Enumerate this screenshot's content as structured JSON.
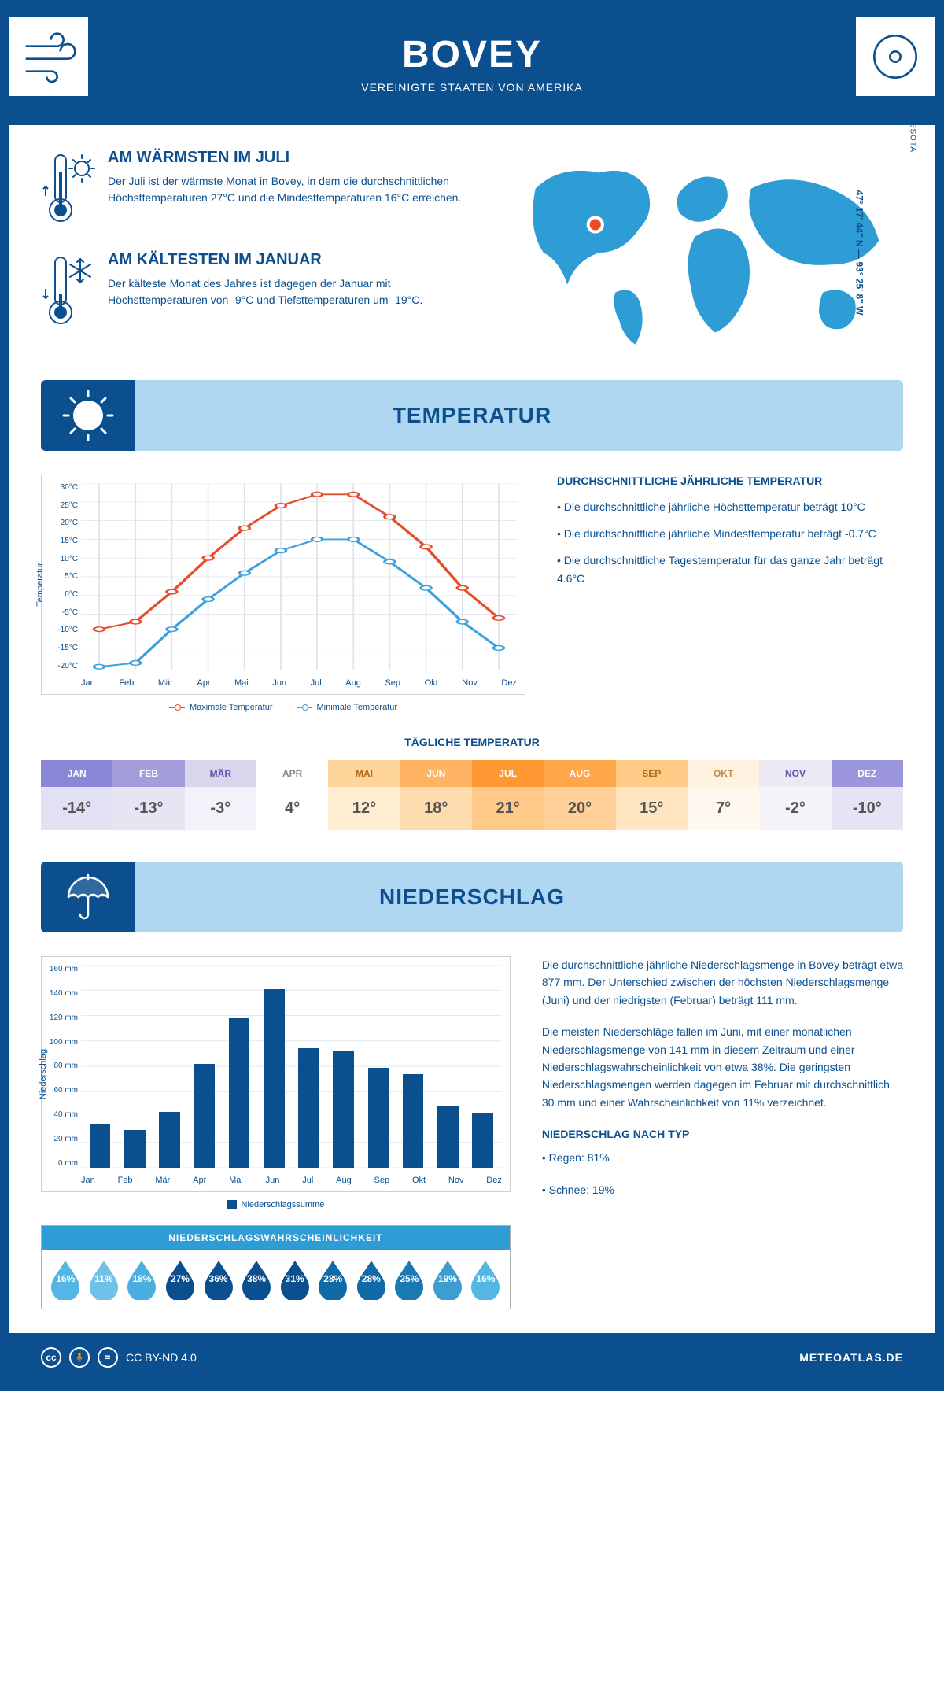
{
  "header": {
    "title": "BOVEY",
    "subtitle": "VEREINIGTE STAATEN VON AMERIKA"
  },
  "intro": {
    "warm": {
      "title": "AM WÄRMSTEN IM JULI",
      "text": "Der Juli ist der wärmste Monat in Bovey, in dem die durchschnittlichen Höchsttemperaturen 27°C und die Mindesttemperaturen 16°C erreichen."
    },
    "cold": {
      "title": "AM KÄLTESTEN IM JANUAR",
      "text": "Der kälteste Monat des Jahres ist dagegen der Januar mit Höchsttemperaturen von -9°C und Tiefsttemperaturen um -19°C."
    },
    "state": "MINNESOTA",
    "coords": "47° 17' 44'' N — 93° 25' 8'' W"
  },
  "months": [
    "Jan",
    "Feb",
    "Mär",
    "Apr",
    "Mai",
    "Jun",
    "Jul",
    "Aug",
    "Sep",
    "Okt",
    "Nov",
    "Dez"
  ],
  "months_upper": [
    "JAN",
    "FEB",
    "MÄR",
    "APR",
    "MAI",
    "JUN",
    "JUL",
    "AUG",
    "SEP",
    "OKT",
    "NOV",
    "DEZ"
  ],
  "temperature": {
    "banner": "TEMPERATUR",
    "chart": {
      "ylabel": "Temperatur",
      "ymin": -20,
      "ymax": 30,
      "ystep": 5,
      "max_series": {
        "label": "Maximale Temperatur",
        "color": "#e74c2b",
        "values": [
          -9,
          -7,
          1,
          10,
          18,
          24,
          27,
          27,
          21,
          13,
          2,
          -6
        ]
      },
      "min_series": {
        "label": "Minimale Temperatur",
        "color": "#3fa0de",
        "values": [
          -19,
          -18,
          -9,
          -1,
          6,
          12,
          15,
          15,
          9,
          2,
          -7,
          -14
        ]
      }
    },
    "info": {
      "title": "DURCHSCHNITTLICHE JÄHRLICHE TEMPERATUR",
      "l1": "• Die durchschnittliche jährliche Höchsttemperatur beträgt 10°C",
      "l2": "• Die durchschnittliche jährliche Mindesttemperatur beträgt -0.7°C",
      "l3": "• Die durchschnittliche Tagestemperatur für das ganze Jahr beträgt 4.6°C"
    },
    "daily": {
      "title": "TÄGLICHE TEMPERATUR",
      "values": [
        "-14°",
        "-13°",
        "-3°",
        "4°",
        "12°",
        "18°",
        "21°",
        "20°",
        "15°",
        "7°",
        "-2°",
        "-10°"
      ],
      "head_colors": [
        "#8b87d8",
        "#a39ddd",
        "#d9d5ed",
        "#ffffff",
        "#ffd59a",
        "#ffb463",
        "#ff9833",
        "#ffa748",
        "#ffcb87",
        "#fff2e0",
        "#ece9f5",
        "#9b96db"
      ],
      "val_colors": [
        "#e2e0f3",
        "#e7e5f4",
        "#f3f1f9",
        "#ffffff",
        "#ffedd2",
        "#ffdcb0",
        "#ffc988",
        "#ffd199",
        "#ffe5c0",
        "#fff8ee",
        "#f6f4fa",
        "#e6e3f4"
      ],
      "text_colors": [
        "#ffffff",
        "#ffffff",
        "#5b56b0",
        "#888888",
        "#b06a1a",
        "#ffffff",
        "#ffffff",
        "#ffffff",
        "#b06a1a",
        "#c08a4a",
        "#5b56b0",
        "#ffffff"
      ]
    }
  },
  "precip": {
    "banner": "NIEDERSCHLAG",
    "chart": {
      "ylabel": "Niederschlag",
      "ymax": 160,
      "ystep": 20,
      "values": [
        35,
        30,
        44,
        82,
        118,
        141,
        94,
        92,
        79,
        74,
        49,
        43
      ],
      "color": "#0b4f8f",
      "legend": "Niederschlagssumme"
    },
    "text1": "Die durchschnittliche jährliche Niederschlagsmenge in Bovey beträgt etwa 877 mm. Der Unterschied zwischen der höchsten Niederschlagsmenge (Juni) und der niedrigsten (Februar) beträgt 111 mm.",
    "text2": "Die meisten Niederschläge fallen im Juni, mit einer monatlichen Niederschlagsmenge von 141 mm in diesem Zeitraum und einer Niederschlagswahrscheinlichkeit von etwa 38%. Die geringsten Niederschlagsmengen werden dagegen im Februar mit durchschnittlich 30 mm und einer Wahrscheinlichkeit von 11% verzeichnet.",
    "type_title": "NIEDERSCHLAG NACH TYP",
    "type1": "• Regen: 81%",
    "type2": "• Schnee: 19%",
    "prob": {
      "title": "NIEDERSCHLAGSWAHRSCHEINLICHKEIT",
      "values": [
        "16%",
        "11%",
        "18%",
        "27%",
        "36%",
        "38%",
        "31%",
        "28%",
        "28%",
        "25%",
        "19%",
        "16%"
      ],
      "colors": [
        "#54b6e4",
        "#6fc1e8",
        "#4aafe0",
        "#0b4f8f",
        "#0b4f8f",
        "#0b4f8f",
        "#0b4f8f",
        "#1169a8",
        "#1169a8",
        "#1a78b5",
        "#3b9dd0",
        "#54b6e4"
      ]
    }
  },
  "footer": {
    "license": "CC BY-ND 4.0",
    "site": "METEOATLAS.DE"
  }
}
